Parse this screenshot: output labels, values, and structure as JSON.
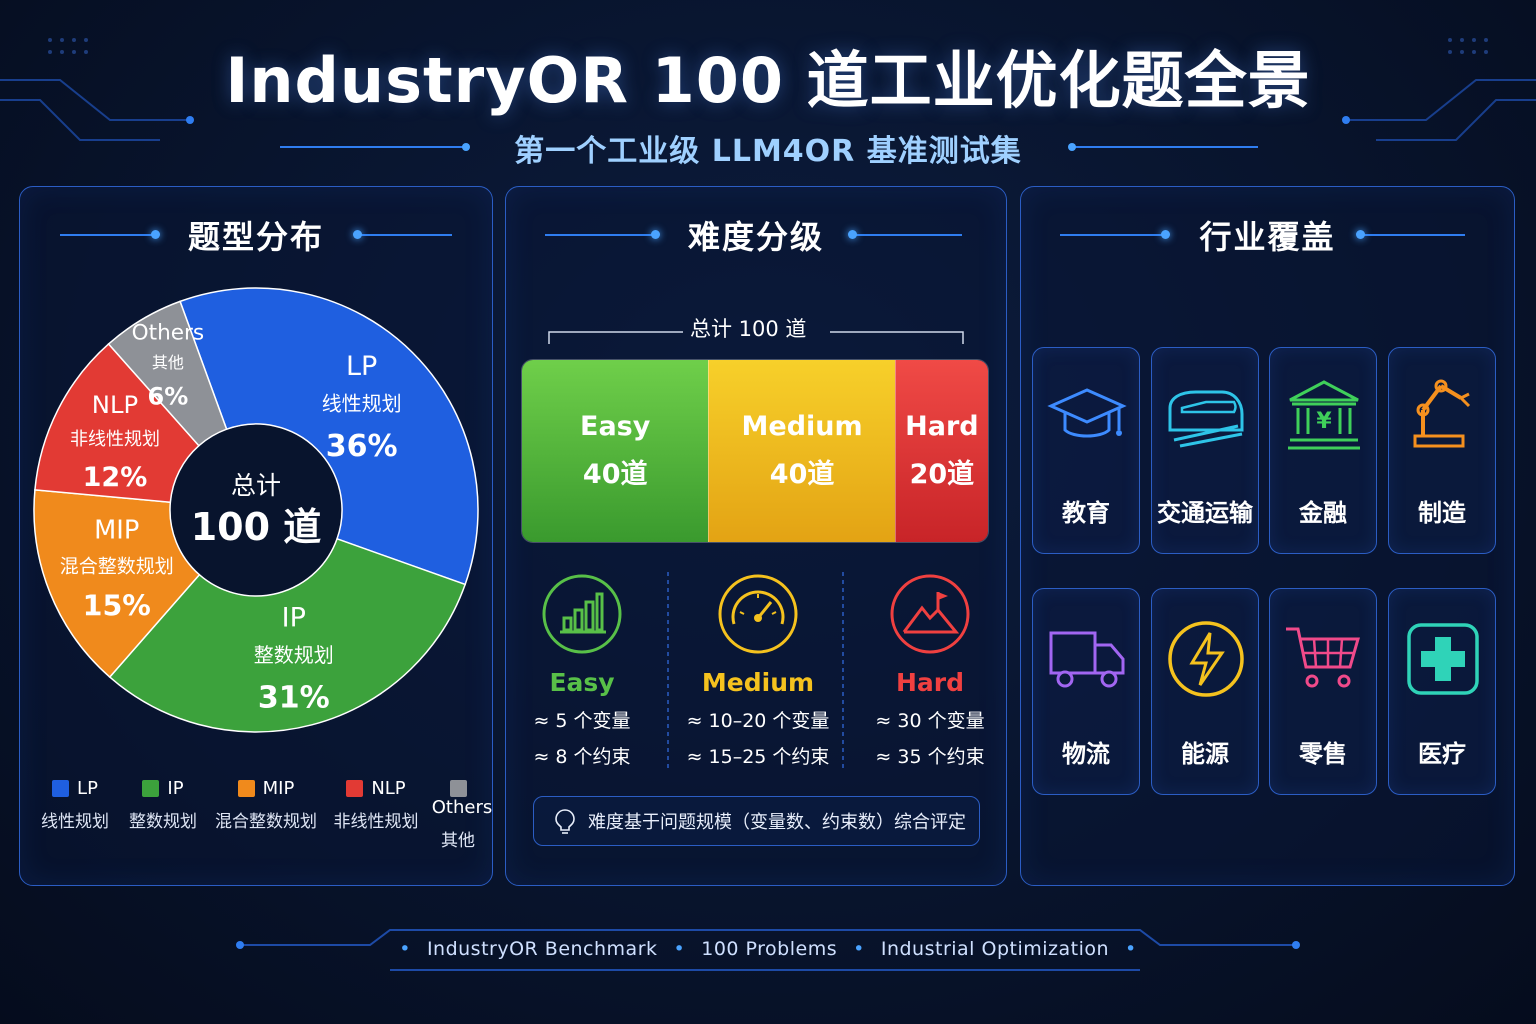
{
  "header": {
    "title": "IndustryOR 100 道工业优化题全景",
    "subtitle": "第一个工业级 LLM4OR 基准测试集"
  },
  "panels": {
    "type_title": "题型分布",
    "difficulty_title": "难度分级",
    "industry_title": "行业覆盖"
  },
  "donut_center": {
    "label": "总计",
    "value": "100 道"
  },
  "chart_data": [
    {
      "type": "pie",
      "title": "题型分布",
      "categories": [
        "LP",
        "IP",
        "MIP",
        "NLP",
        "Others"
      ],
      "category_names": [
        "线性规划",
        "整数规划",
        "混合整数规划",
        "非线性规划",
        "其他"
      ],
      "values": [
        36,
        31,
        15,
        12,
        6
      ],
      "value_labels": [
        "36%",
        "31%",
        "15%",
        "12%",
        "6%"
      ],
      "colors": [
        "#1f5fe0",
        "#3ca23c",
        "#f08a1c",
        "#e23a34",
        "#8e9197"
      ],
      "legend": "bottom"
    },
    {
      "type": "bar",
      "title": "难度分级",
      "total_label": "总计 100 道",
      "categories": [
        "Easy",
        "Medium",
        "Hard"
      ],
      "values": [
        40,
        40,
        20
      ],
      "value_labels": [
        "40道",
        "40道",
        "20道"
      ],
      "colors": [
        "#4aab3a",
        "#f0b41c",
        "#e2363a"
      ],
      "orientation": "horizontal-stacked"
    }
  ],
  "difficulty_details": [
    {
      "name": "Easy",
      "color": "#58c048",
      "vars": "≈ 5 个变量",
      "cons": "≈ 8 个约束",
      "icon": "bar-chart-icon"
    },
    {
      "name": "Medium",
      "color": "#f5c21e",
      "vars": "≈ 10–20 个变量",
      "cons": "≈ 15–25 个约束",
      "icon": "gauge-icon"
    },
    {
      "name": "Hard",
      "color": "#f04040",
      "vars": "≈ 30 个变量",
      "cons": "≈ 35 个约束",
      "icon": "mountain-flag-icon"
    }
  ],
  "difficulty_note": "难度基于问题规模（变量数、约束数）综合评定",
  "industries": [
    {
      "label": "教育",
      "icon": "graduation-cap-icon",
      "color": "#3d8bff"
    },
    {
      "label": "交通运输",
      "icon": "train-icon",
      "color": "#2ec4e8"
    },
    {
      "label": "金融",
      "icon": "bank-icon",
      "color": "#3fd05a"
    },
    {
      "label": "制造",
      "icon": "robot-arm-icon",
      "color": "#f5901e"
    },
    {
      "label": "物流",
      "icon": "truck-icon",
      "color": "#a266f2"
    },
    {
      "label": "能源",
      "icon": "lightning-icon",
      "color": "#f5c21e"
    },
    {
      "label": "零售",
      "icon": "cart-icon",
      "color": "#f04a8a"
    },
    {
      "label": "医疗",
      "icon": "medical-cross-icon",
      "color": "#2fd3b8"
    }
  ],
  "footer": {
    "items": [
      "IndustryOR Benchmark",
      "100 Problems",
      "Industrial Optimization"
    ]
  }
}
